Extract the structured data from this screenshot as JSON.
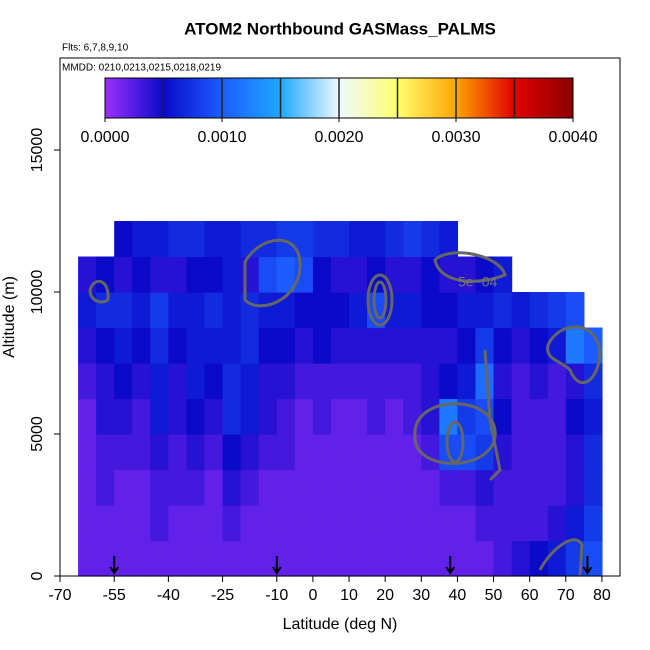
{
  "chart_data": {
    "type": "heatmap",
    "title": "ATOM2 Northbound GASMass_PALMS",
    "subtitle": "Flts: 6,7,8,9,10",
    "note": "MMDD: 0210,0213,0215,0218,0219",
    "x_label": "Latitude (deg N)",
    "y_label": "Altitude (m)",
    "xlim": [
      -70,
      85
    ],
    "ylim": [
      0,
      18240
    ],
    "xticks": [
      -70,
      -55,
      -40,
      -25,
      -10,
      0,
      10,
      20,
      30,
      40,
      50,
      60,
      70,
      80
    ],
    "yticks": [
      0,
      5000,
      10000,
      15000
    ],
    "zlim": [
      0,
      0.004
    ],
    "zticks": [
      {
        "value": 0,
        "label": "0.0000"
      },
      {
        "value": 0.001,
        "label": "0.0010"
      },
      {
        "value": 0.002,
        "label": "0.0020"
      },
      {
        "value": 0.003,
        "label": "0.0030"
      },
      {
        "value": 0.004,
        "label": "0.0040"
      }
    ],
    "colors": [
      "#9b30ff",
      "#0a0ac8",
      "#1d5cff",
      "#1ea8ff",
      "#eef8ff",
      "#ffff70",
      "#ffa500",
      "#e00000",
      "#8b0000"
    ],
    "contour_label": "5e−04",
    "arrows_x": [
      -55,
      -10,
      38,
      76
    ],
    "xbins": [
      -65,
      -60,
      -55,
      -50,
      -45,
      -40,
      -35,
      -30,
      -25,
      -20,
      -15,
      -10,
      -5,
      0,
      5,
      10,
      15,
      20,
      25,
      30,
      35,
      40,
      45,
      50,
      55,
      60,
      65,
      70,
      75,
      80
    ],
    "ybins": [
      0,
      1250,
      2500,
      3750,
      5000,
      6250,
      7500,
      8750,
      10000,
      11250,
      12500
    ],
    "z": [
      [
        0.0002,
        0.0002,
        0.0002,
        0.0002,
        0.0002,
        0.0002,
        0.0002,
        0.0002,
        0.0002,
        0.0002,
        0.0002,
        0.0002,
        0.0002,
        0.0002,
        0.0002,
        0.0002,
        0.0002,
        0.0002,
        0.0002,
        0.0002,
        0.0002,
        0.0002,
        0.0002,
        0.0003,
        0.0004,
        0.0005,
        0.0006,
        0.0008,
        0.0009
      ],
      [
        0.0002,
        0.0002,
        0.0002,
        0.0002,
        0.0003,
        0.0002,
        0.0002,
        0.0002,
        0.0003,
        0.0002,
        0.0002,
        0.0002,
        0.0002,
        0.0002,
        0.0002,
        0.0002,
        0.0002,
        0.0002,
        0.0002,
        0.0002,
        0.0002,
        0.0002,
        0.0003,
        0.0003,
        0.0003,
        0.0003,
        0.0004,
        0.0006,
        0.0008
      ],
      [
        0.0002,
        0.0003,
        0.0002,
        0.0002,
        0.0003,
        0.0003,
        0.0003,
        0.0002,
        0.0004,
        0.0003,
        0.0002,
        0.0002,
        0.0002,
        0.0002,
        0.0002,
        0.0002,
        0.0002,
        0.0002,
        0.0002,
        0.0002,
        0.0003,
        0.0003,
        0.0004,
        0.0003,
        0.0003,
        0.0003,
        0.0003,
        0.0004,
        0.0007
      ],
      [
        0.0002,
        0.0003,
        0.0003,
        0.0003,
        0.0004,
        0.0003,
        0.0004,
        0.0003,
        0.0005,
        0.0004,
        0.0003,
        0.0003,
        0.0002,
        0.0002,
        0.0002,
        0.0002,
        0.0002,
        0.0002,
        0.0002,
        0.0003,
        0.0009,
        0.0009,
        0.0008,
        0.0004,
        0.0003,
        0.0003,
        0.0003,
        0.0004,
        0.0007
      ],
      [
        0.0002,
        0.0004,
        0.0004,
        0.0003,
        0.0006,
        0.0004,
        0.0005,
        0.0004,
        0.0007,
        0.0006,
        0.0004,
        0.0003,
        0.0002,
        0.0003,
        0.0002,
        0.0002,
        0.0003,
        0.0002,
        0.0003,
        0.0004,
        0.0012,
        0.0008,
        0.0009,
        0.0005,
        0.0003,
        0.0003,
        0.0003,
        0.0005,
        0.0006
      ],
      [
        0.0003,
        0.0004,
        0.0005,
        0.0004,
        0.0006,
        0.0004,
        0.0006,
        0.0005,
        0.0007,
        0.0006,
        0.0004,
        0.0004,
        0.0003,
        0.0003,
        0.0003,
        0.0003,
        0.0003,
        0.0003,
        0.0003,
        0.0004,
        0.0005,
        0.0006,
        0.0011,
        0.0004,
        0.0003,
        0.0004,
        0.0003,
        0.0004,
        0.0007
      ],
      [
        0.0004,
        0.0005,
        0.0006,
        0.0005,
        0.0007,
        0.0005,
        0.0006,
        0.0006,
        0.0006,
        0.0007,
        0.0005,
        0.0005,
        0.0004,
        0.0005,
        0.0004,
        0.0004,
        0.0004,
        0.0004,
        0.0004,
        0.0004,
        0.0004,
        0.0005,
        0.0008,
        0.0005,
        0.0004,
        0.0005,
        0.0006,
        0.0012,
        0.001
      ],
      [
        0.0006,
        0.0007,
        0.0007,
        0.0006,
        0.0008,
        0.0006,
        0.0006,
        0.0007,
        0.0006,
        0.0007,
        0.0006,
        0.0006,
        0.0005,
        0.0005,
        0.0005,
        0.0006,
        0.0009,
        0.0006,
        0.0006,
        0.0005,
        0.0005,
        0.0006,
        0.0006,
        0.0007,
        0.0006,
        0.0007,
        0.0008,
        0.0009,
        null
      ],
      [
        0.0004,
        0.0005,
        0.0004,
        0.0005,
        0.0004,
        0.0004,
        0.0005,
        0.0005,
        0.0006,
        0.0004,
        0.0009,
        0.001,
        0.0009,
        0.0005,
        0.0004,
        0.0004,
        0.0005,
        0.0004,
        0.0004,
        0.0005,
        0.0004,
        0.0004,
        0.0005,
        0.0006,
        null,
        null,
        null,
        null,
        null
      ],
      [
        null,
        null,
        0.0005,
        0.0006,
        0.0006,
        0.0007,
        0.0007,
        0.0006,
        0.0006,
        0.0007,
        0.0007,
        0.0008,
        0.0008,
        0.0007,
        0.0007,
        0.0006,
        0.0006,
        0.0007,
        0.0008,
        0.0007,
        0.0006,
        null,
        null,
        null,
        null,
        null,
        null,
        null,
        null
      ]
    ]
  }
}
